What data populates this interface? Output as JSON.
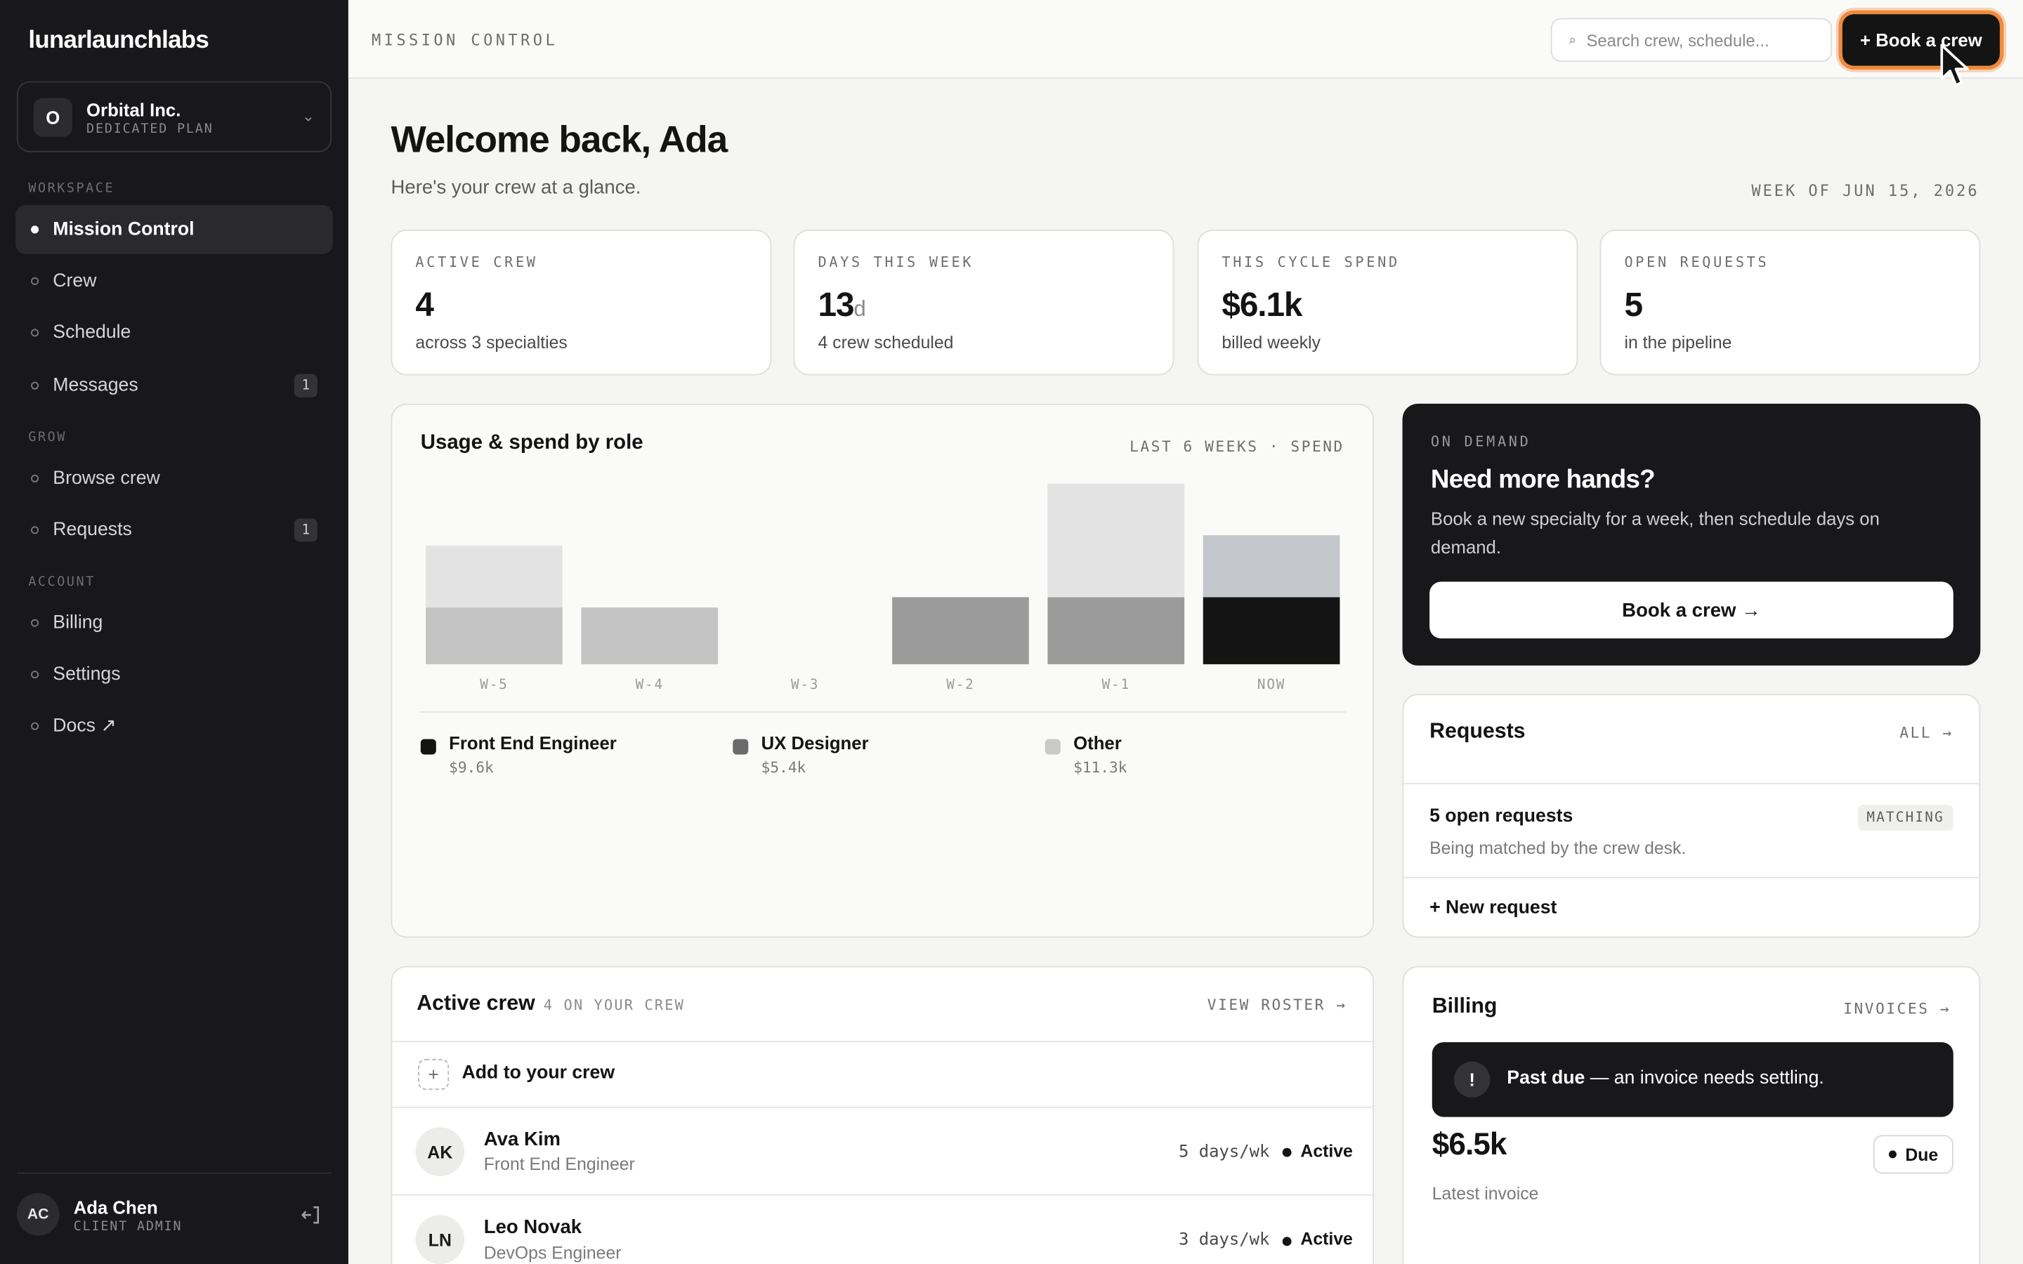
{
  "sidebar": {
    "brand": "lunarlaunchlabs",
    "org": {
      "initial": "O",
      "name": "Orbital Inc.",
      "plan": "DEDICATED PLAN"
    },
    "groups": {
      "workspace": "WORKSPACE",
      "grow": "GROW",
      "account": "ACCOUNT"
    },
    "items": {
      "mission_control": "Mission Control",
      "crew": "Crew",
      "schedule": "Schedule",
      "messages": "Messages",
      "messages_badge": "1",
      "browse_crew": "Browse crew",
      "requests": "Requests",
      "requests_badge": "1",
      "billing": "Billing",
      "settings": "Settings",
      "docs": "Docs ↗"
    },
    "user": {
      "initials": "AC",
      "name": "Ada Chen",
      "role": "CLIENT ADMIN"
    }
  },
  "topbar": {
    "crumb": "MISSION CONTROL",
    "search_placeholder": "Search crew, schedule...",
    "book_button": "+ Book a crew"
  },
  "header": {
    "title": "Welcome back, Ada",
    "subtitle": "Here's your crew at a glance.",
    "week": "WEEK OF JUN 15, 2026"
  },
  "stats": [
    {
      "label": "ACTIVE CREW",
      "value": "4",
      "unit": "",
      "desc": "across 3 specialties"
    },
    {
      "label": "DAYS THIS WEEK",
      "value": "13",
      "unit": "d",
      "desc": "4 crew scheduled"
    },
    {
      "label": "THIS CYCLE SPEND",
      "value": "$6.1k",
      "unit": "",
      "desc": "billed weekly"
    },
    {
      "label": "OPEN REQUESTS",
      "value": "5",
      "unit": "",
      "desc": "in the pipeline"
    }
  ],
  "usage": {
    "title": "Usage & spend by role",
    "meta": "LAST 6 WEEKS · SPEND"
  },
  "chart_data": {
    "type": "bar",
    "stacked": true,
    "categories": [
      "W-5",
      "W-4",
      "W-3",
      "W-2",
      "W-1",
      "NOW"
    ],
    "ylim": [
      0,
      3.5
    ],
    "series": [
      {
        "name": "Front End Engineer",
        "color": "#141414",
        "values": [
          0,
          0,
          0,
          0,
          0,
          1.3
        ]
      },
      {
        "name": "UX Designer",
        "color": "#9b9b9b",
        "values": [
          0,
          0,
          0,
          1.3,
          1.3,
          0
        ]
      },
      {
        "name": "Other",
        "color": "#c4c4c4",
        "values": [
          1.1,
          1.1,
          0,
          0,
          0,
          0
        ]
      },
      {
        "name": "Other (light)",
        "color": "#e3e3e3",
        "values": [
          1.2,
          0,
          0,
          0,
          2.2,
          0
        ]
      },
      {
        "name": "Other (slate)",
        "color": "#c3c6ca",
        "values": [
          0,
          0,
          0,
          0,
          0,
          1.2
        ]
      }
    ],
    "legend": [
      {
        "name": "Front End Engineer",
        "value": "$9.6k",
        "color": "#141414"
      },
      {
        "name": "UX Designer",
        "value": "$5.4k",
        "color": "#6b6b6b"
      },
      {
        "name": "Other",
        "value": "$11.3k",
        "color": "#c9c9c9"
      }
    ]
  },
  "ondemand": {
    "eyebrow": "ON DEMAND",
    "title": "Need more hands?",
    "text": "Book a new specialty for a week, then schedule days on demand.",
    "button": "Book a crew →"
  },
  "requests": {
    "title": "Requests",
    "link": "ALL →",
    "summary": "5 open requests",
    "pill": "MATCHING",
    "detail": "Being matched by the crew desk.",
    "new": "+ New request"
  },
  "crew": {
    "title": "Active crew",
    "count": "4 ON YOUR CREW",
    "link": "VIEW ROSTER →",
    "add": "Add to your crew",
    "members": [
      {
        "initials": "AK",
        "name": "Ava Kim",
        "role": "Front End Engineer",
        "days": "5 days/wk",
        "status": "Active"
      },
      {
        "initials": "LN",
        "name": "Leo Novak",
        "role": "DevOps Engineer",
        "days": "3 days/wk",
        "status": "Active"
      }
    ]
  },
  "billing": {
    "title": "Billing",
    "link": "INVOICES →",
    "alert_bold": "Past due",
    "alert_rest": " — an invoice needs settling.",
    "amount": "$6.5k",
    "status": "Due",
    "caption": "Latest invoice"
  }
}
